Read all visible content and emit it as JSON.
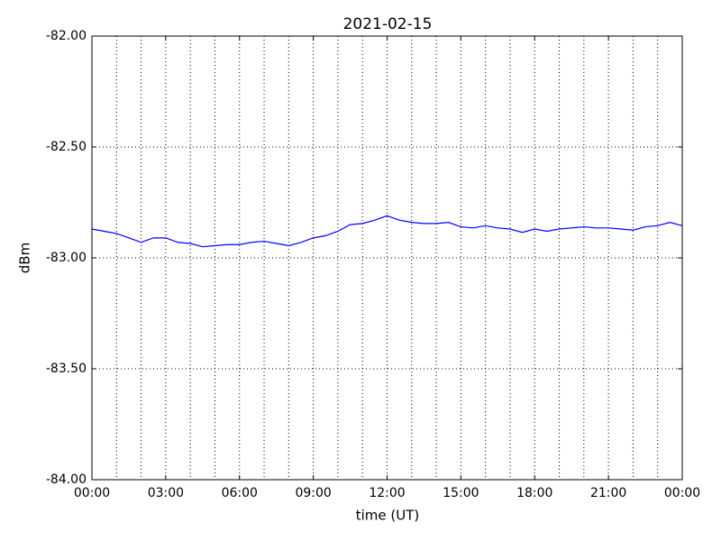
{
  "chart_data": {
    "type": "line",
    "title": "2021-02-15",
    "xlabel": "time (UT)",
    "ylabel": "dBm",
    "x": [
      0,
      0.5,
      1,
      1.5,
      2,
      2.5,
      3,
      3.5,
      4,
      4.5,
      5,
      5.5,
      6,
      6.5,
      7,
      7.5,
      8,
      8.5,
      9,
      9.5,
      10,
      10.5,
      11,
      11.5,
      12,
      12.5,
      13,
      13.5,
      14,
      14.5,
      15,
      15.5,
      16,
      16.5,
      17,
      17.5,
      18,
      18.5,
      19,
      19.5,
      20,
      20.5,
      21,
      21.5,
      22,
      22.5,
      23,
      23.5,
      24
    ],
    "series": [
      {
        "color": "#0000ff",
        "values": [
          -82.87,
          -82.88,
          -82.89,
          -82.91,
          -82.93,
          -82.91,
          -82.91,
          -82.93,
          -82.935,
          -82.95,
          -82.945,
          -82.94,
          -82.94,
          -82.93,
          -82.925,
          -82.935,
          -82.945,
          -82.93,
          -82.91,
          -82.9,
          -82.88,
          -82.85,
          -82.845,
          -82.83,
          -82.81,
          -82.83,
          -82.84,
          -82.845,
          -82.845,
          -82.84,
          -82.86,
          -82.865,
          -82.855,
          -82.865,
          -82.87,
          -82.885,
          -82.87,
          -82.88,
          -82.87,
          -82.865,
          -82.86,
          -82.865,
          -82.865,
          -82.87,
          -82.875,
          -82.86,
          -82.855,
          -82.84,
          -82.855
        ]
      }
    ],
    "xlim": [
      0,
      24
    ],
    "xticks": [
      {
        "value": 0,
        "label": "00:00"
      },
      {
        "value": 3,
        "label": "03:00"
      },
      {
        "value": 6,
        "label": "06:00"
      },
      {
        "value": 9,
        "label": "09:00"
      },
      {
        "value": 12,
        "label": "12:00"
      },
      {
        "value": 15,
        "label": "15:00"
      },
      {
        "value": 18,
        "label": "18:00"
      },
      {
        "value": 21,
        "label": "21:00"
      },
      {
        "value": 24,
        "label": "00:00"
      }
    ],
    "xminorticks": [
      1,
      2,
      4,
      5,
      7,
      8,
      10,
      11,
      13,
      14,
      16,
      17,
      19,
      20,
      22,
      23
    ],
    "ylim": [
      -84,
      -82
    ],
    "yticks": [
      {
        "value": -84,
        "label": "-84.00"
      },
      {
        "value": -83.5,
        "label": "-83.50"
      },
      {
        "value": -83,
        "label": "-83.00"
      },
      {
        "value": -82.5,
        "label": "-82.50"
      },
      {
        "value": -82,
        "label": "-82.00"
      }
    ],
    "grid": true
  }
}
